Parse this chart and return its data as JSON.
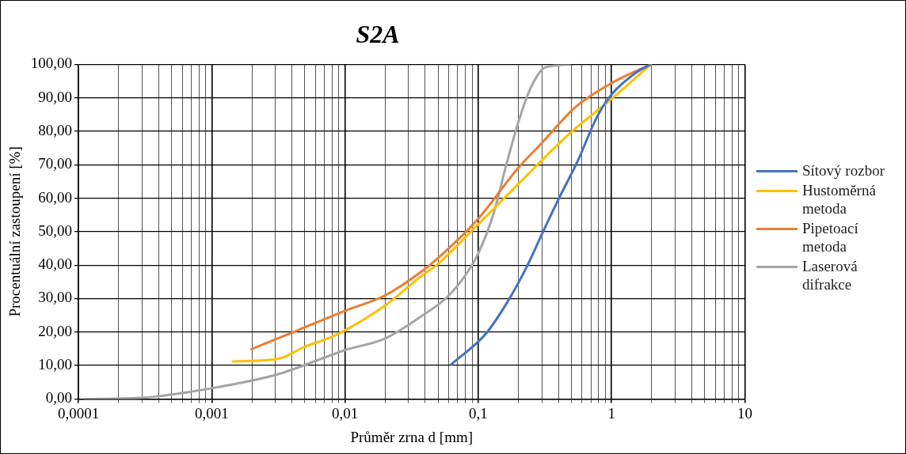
{
  "chart_data": {
    "type": "line",
    "title": "S2A",
    "xlabel": "Průměr zrna d [mm]",
    "ylabel": "Procentuální zastoupení [%]",
    "log": "x",
    "grid": true,
    "legend": "right",
    "marker": "none",
    "line_style": "solid",
    "xlim": [
      0.0001,
      10
    ],
    "ylim": [
      0,
      100
    ],
    "xticks": [
      {
        "value": 0.0001,
        "label": "0,0001"
      },
      {
        "value": 0.0002,
        "label": null
      },
      {
        "value": 0.0003,
        "label": null
      },
      {
        "value": 0.0004,
        "label": null
      },
      {
        "value": 0.0005,
        "label": null
      },
      {
        "value": 0.0006,
        "label": null
      },
      {
        "value": 0.0007,
        "label": null
      },
      {
        "value": 0.0008,
        "label": null
      },
      {
        "value": 0.0009,
        "label": null
      },
      {
        "value": 0.001,
        "label": "0,001"
      },
      {
        "value": 0.002,
        "label": null
      },
      {
        "value": 0.003,
        "label": null
      },
      {
        "value": 0.004,
        "label": null
      },
      {
        "value": 0.005,
        "label": null
      },
      {
        "value": 0.006,
        "label": null
      },
      {
        "value": 0.007,
        "label": null
      },
      {
        "value": 0.008,
        "label": null
      },
      {
        "value": 0.009,
        "label": null
      },
      {
        "value": 0.01,
        "label": "0,01"
      },
      {
        "value": 0.02,
        "label": null
      },
      {
        "value": 0.03,
        "label": null
      },
      {
        "value": 0.04,
        "label": null
      },
      {
        "value": 0.05,
        "label": null
      },
      {
        "value": 0.06,
        "label": null
      },
      {
        "value": 0.07,
        "label": null
      },
      {
        "value": 0.08,
        "label": null
      },
      {
        "value": 0.09,
        "label": null
      },
      {
        "value": 0.1,
        "label": "0,1"
      },
      {
        "value": 0.2,
        "label": null
      },
      {
        "value": 0.3,
        "label": null
      },
      {
        "value": 0.4,
        "label": null
      },
      {
        "value": 0.5,
        "label": null
      },
      {
        "value": 0.6,
        "label": null
      },
      {
        "value": 0.7,
        "label": null
      },
      {
        "value": 0.8,
        "label": null
      },
      {
        "value": 0.9,
        "label": null
      },
      {
        "value": 1,
        "label": "1"
      },
      {
        "value": 2,
        "label": null
      },
      {
        "value": 3,
        "label": null
      },
      {
        "value": 4,
        "label": null
      },
      {
        "value": 5,
        "label": null
      },
      {
        "value": 6,
        "label": null
      },
      {
        "value": 7,
        "label": null
      },
      {
        "value": 8,
        "label": null
      },
      {
        "value": 9,
        "label": null
      },
      {
        "value": 10,
        "label": "10"
      }
    ],
    "yticks": [
      {
        "value": 0,
        "label": "0,00"
      },
      {
        "value": 10,
        "label": "10,00"
      },
      {
        "value": 20,
        "label": "20,00"
      },
      {
        "value": 30,
        "label": "30,00"
      },
      {
        "value": 40,
        "label": "40,00"
      },
      {
        "value": 50,
        "label": "50,00"
      },
      {
        "value": 60,
        "label": "60,00"
      },
      {
        "value": 70,
        "label": "70,00"
      },
      {
        "value": 80,
        "label": "80,00"
      },
      {
        "value": 90,
        "label": "90,00"
      },
      {
        "value": 100,
        "label": "100,00"
      }
    ],
    "series": [
      {
        "name": "Sítový rozbor",
        "color": "#4472c4",
        "x": [
          0.0626,
          0.1135,
          0.165,
          0.229,
          0.303,
          0.402,
          0.557,
          0.773,
          1.0,
          1.56,
          1.97
        ],
        "values": [
          10.3,
          19.4,
          28.9,
          39.2,
          49.6,
          59.9,
          71.1,
          84.1,
          91.0,
          97.8,
          100
        ]
      },
      {
        "name": "Hustoměrná metoda",
        "color": "#ffc000",
        "x": [
          0.00144,
          0.00323,
          0.00492,
          0.00787,
          0.0102,
          0.0201,
          0.037,
          0.0489,
          0.1,
          0.199,
          0.484,
          1.0,
          1.97
        ],
        "values": [
          11.2,
          12.1,
          15.5,
          18.5,
          20.7,
          28.0,
          36.6,
          40.1,
          52.2,
          64.2,
          79.3,
          89.7,
          100
        ]
      },
      {
        "name": "Pipetoací metoda",
        "color": "#ed7d31",
        "x": [
          0.00199,
          0.00428,
          0.00995,
          0.0201,
          0.037,
          0.0489,
          0.1,
          0.199,
          0.303,
          0.532,
          1.0,
          1.97
        ],
        "values": [
          14.9,
          20.3,
          26.3,
          31.0,
          37.9,
          41.8,
          53.9,
          69.0,
          76.7,
          87.1,
          94.4,
          100
        ]
      },
      {
        "name": "Laserová difrakce",
        "color": "#a5a5a5",
        "x": [
          0.000112,
          0.000309,
          0.001,
          0.00308,
          0.0102,
          0.0201,
          0.037,
          0.0589,
          0.0818,
          0.1,
          0.1306,
          0.165,
          0.208,
          0.251,
          0.318,
          0.484
        ],
        "values": [
          0,
          0.4,
          3.2,
          7.3,
          14.7,
          18.1,
          24.6,
          30.6,
          37.5,
          43.5,
          55.6,
          71.1,
          84.9,
          93.5,
          99.1,
          100
        ]
      }
    ]
  }
}
